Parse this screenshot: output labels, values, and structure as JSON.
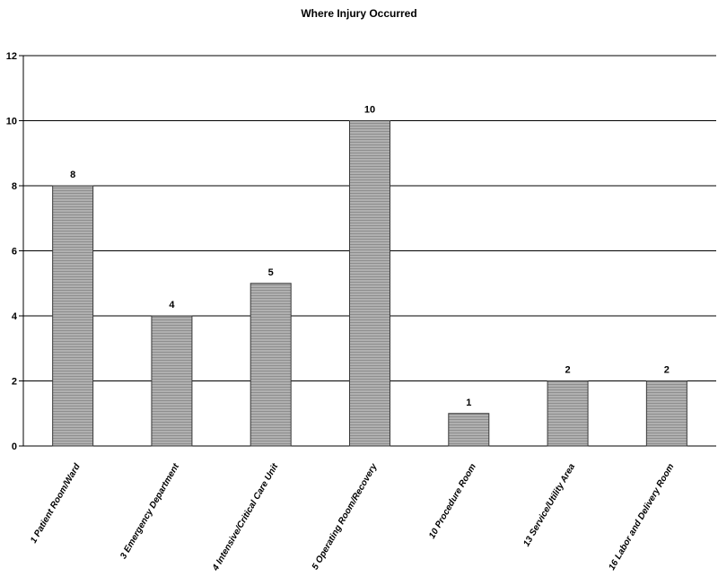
{
  "chart_data": {
    "type": "bar",
    "title": "Where Injury Occurred",
    "xlabel": "",
    "ylabel": "",
    "categories": [
      "1  Patient Room/Ward",
      "3 Emergency Department",
      "4 Intensive/Critical Care Unit",
      "5  Operating Room/Recovery",
      "10 Procedure Room",
      "13 Service/Utility Area",
      "16 Labor and Delivery Room"
    ],
    "values": [
      8,
      4,
      5,
      10,
      1,
      2,
      2
    ],
    "data_labels": [
      "8",
      "4",
      "5",
      "10",
      "1",
      "2",
      "2"
    ],
    "ylim": [
      0,
      12
    ],
    "yticks": [
      0,
      2,
      4,
      6,
      8,
      10,
      12
    ],
    "grid": true,
    "legend": "none",
    "colors": {
      "bar_fill": "#a9a9a9",
      "bar_stroke": "#3a3a3a",
      "grid": "#000000",
      "axis": "#000000"
    }
  }
}
